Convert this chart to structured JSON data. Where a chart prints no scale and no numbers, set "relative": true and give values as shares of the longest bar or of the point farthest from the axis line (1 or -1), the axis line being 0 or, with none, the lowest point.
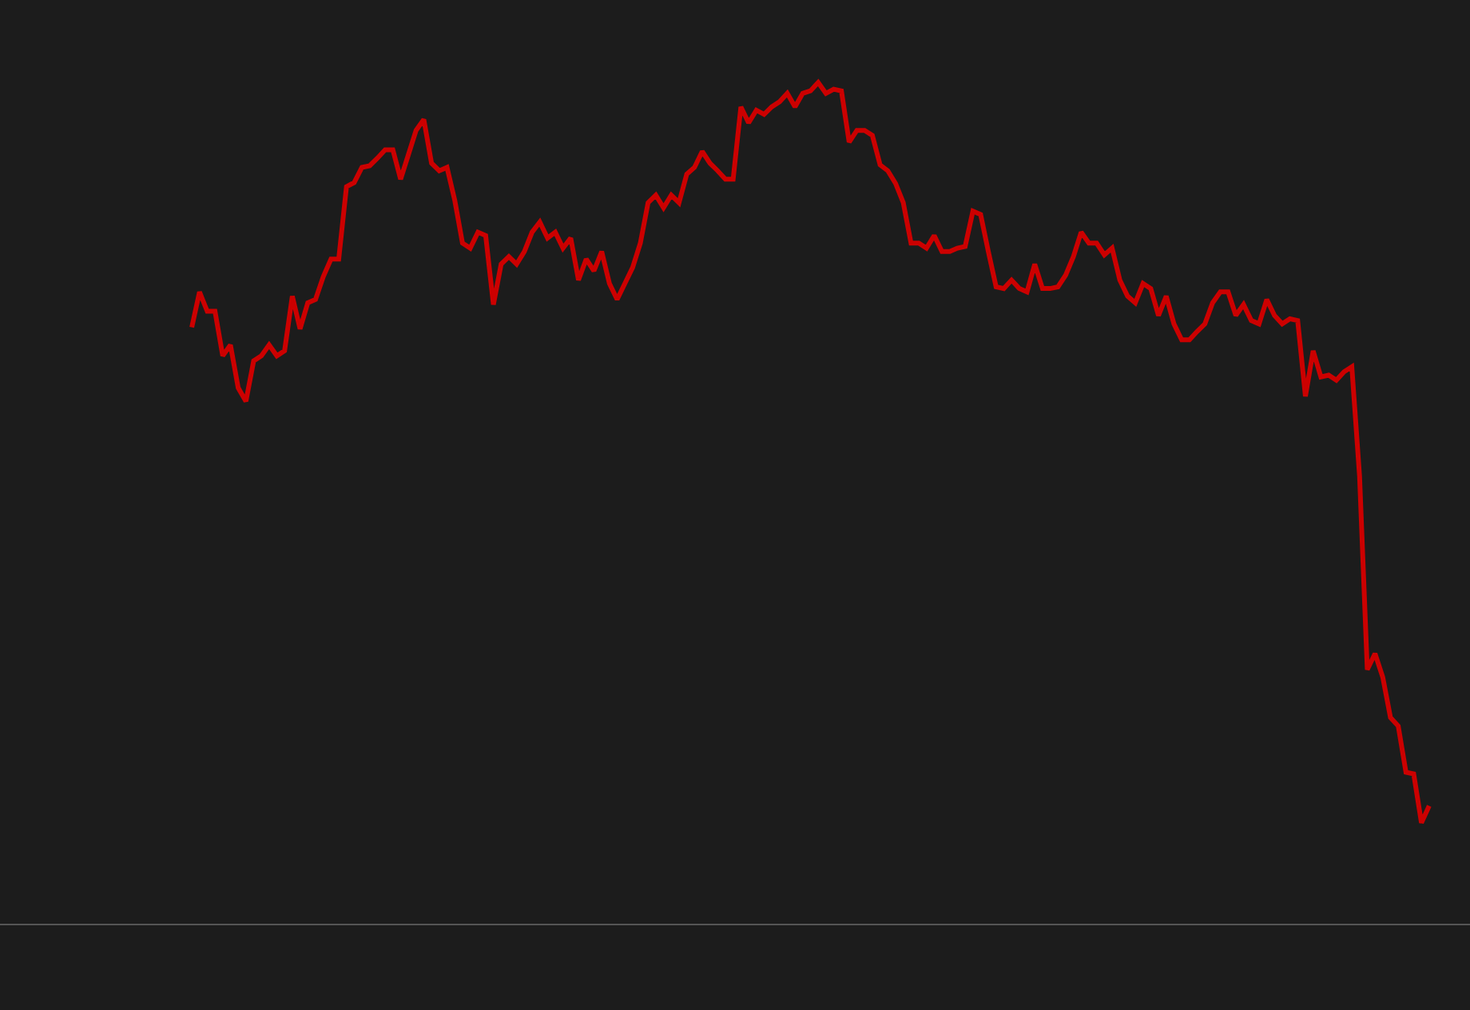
{
  "chart_data": {
    "type": "line",
    "relative": true,
    "categories": [
      null,
      null,
      null,
      null,
      null,
      null,
      null,
      null,
      null,
      null,
      null,
      null,
      null,
      null,
      null,
      null,
      null,
      null,
      null,
      null,
      null,
      null,
      null,
      null,
      null,
      null,
      null,
      null,
      null,
      null,
      null,
      null,
      null,
      null,
      null,
      null,
      null,
      null,
      null,
      null,
      null,
      null,
      null,
      null,
      null,
      null,
      null,
      null,
      null,
      null,
      null,
      null,
      null,
      null,
      null,
      null,
      null,
      null,
      null,
      null,
      null,
      null,
      null,
      null,
      null,
      null,
      null,
      null,
      null,
      null,
      null,
      null,
      null,
      null,
      null,
      null,
      null,
      null,
      null,
      null,
      null,
      null,
      null,
      null,
      null,
      null,
      null,
      null,
      null,
      null,
      null,
      null,
      null,
      null,
      null,
      null,
      null,
      null,
      null,
      null,
      null,
      null,
      null,
      null,
      null,
      null,
      null,
      null,
      null,
      null,
      null,
      null,
      null,
      null,
      null,
      null,
      null,
      null,
      null,
      null,
      null,
      null,
      null,
      null,
      null,
      null,
      null,
      null,
      null,
      null,
      null,
      null,
      null,
      null,
      null,
      null,
      null,
      null,
      null,
      null,
      null,
      null,
      null,
      null,
      null,
      null,
      null,
      null,
      null,
      null,
      null,
      null,
      null,
      null,
      null,
      null,
      null,
      null,
      null,
      null,
      null
    ],
    "series": [
      {
        "color": "#cc0000",
        "values": [
          0.709,
          0.751,
          0.728,
          0.728,
          0.675,
          0.688,
          0.637,
          0.621,
          0.669,
          0.675,
          0.688,
          0.675,
          0.681,
          0.746,
          0.707,
          0.738,
          0.742,
          0.769,
          0.79,
          0.79,
          0.876,
          0.881,
          0.899,
          0.901,
          0.91,
          0.92,
          0.92,
          0.885,
          0.914,
          0.943,
          0.956,
          0.904,
          0.895,
          0.899,
          0.86,
          0.809,
          0.803,
          0.822,
          0.818,
          0.736,
          0.784,
          0.793,
          0.784,
          0.799,
          0.822,
          0.834,
          0.815,
          0.822,
          0.803,
          0.815,
          0.765,
          0.79,
          0.776,
          0.799,
          0.761,
          0.742,
          0.761,
          0.78,
          0.809,
          0.857,
          0.866,
          0.851,
          0.866,
          0.857,
          0.891,
          0.899,
          0.918,
          0.904,
          0.895,
          0.885,
          0.885,
          0.971,
          0.952,
          0.967,
          0.962,
          0.971,
          0.977,
          0.987,
          0.971,
          0.987,
          0.99,
          1.0,
          0.987,
          0.992,
          0.99,
          0.929,
          0.943,
          0.943,
          0.937,
          0.902,
          0.895,
          0.88,
          0.857,
          0.809,
          0.809,
          0.803,
          0.818,
          0.799,
          0.799,
          0.803,
          0.805,
          0.847,
          0.843,
          0.799,
          0.757,
          0.755,
          0.765,
          0.755,
          0.751,
          0.784,
          0.755,
          0.755,
          0.757,
          0.771,
          0.793,
          0.822,
          0.809,
          0.809,
          0.795,
          0.803,
          0.765,
          0.746,
          0.738,
          0.761,
          0.755,
          0.723,
          0.746,
          0.713,
          0.694,
          0.694,
          0.704,
          0.713,
          0.738,
          0.751,
          0.751,
          0.723,
          0.736,
          0.717,
          0.713,
          0.742,
          0.723,
          0.713,
          0.719,
          0.717,
          0.627,
          0.681,
          0.65,
          0.652,
          0.646,
          0.656,
          0.662,
          0.532,
          0.302,
          0.321,
          0.293,
          0.245,
          0.235,
          0.18,
          0.178,
          0.12,
          0.14
        ]
      }
    ],
    "legend": false,
    "grid": false
  }
}
